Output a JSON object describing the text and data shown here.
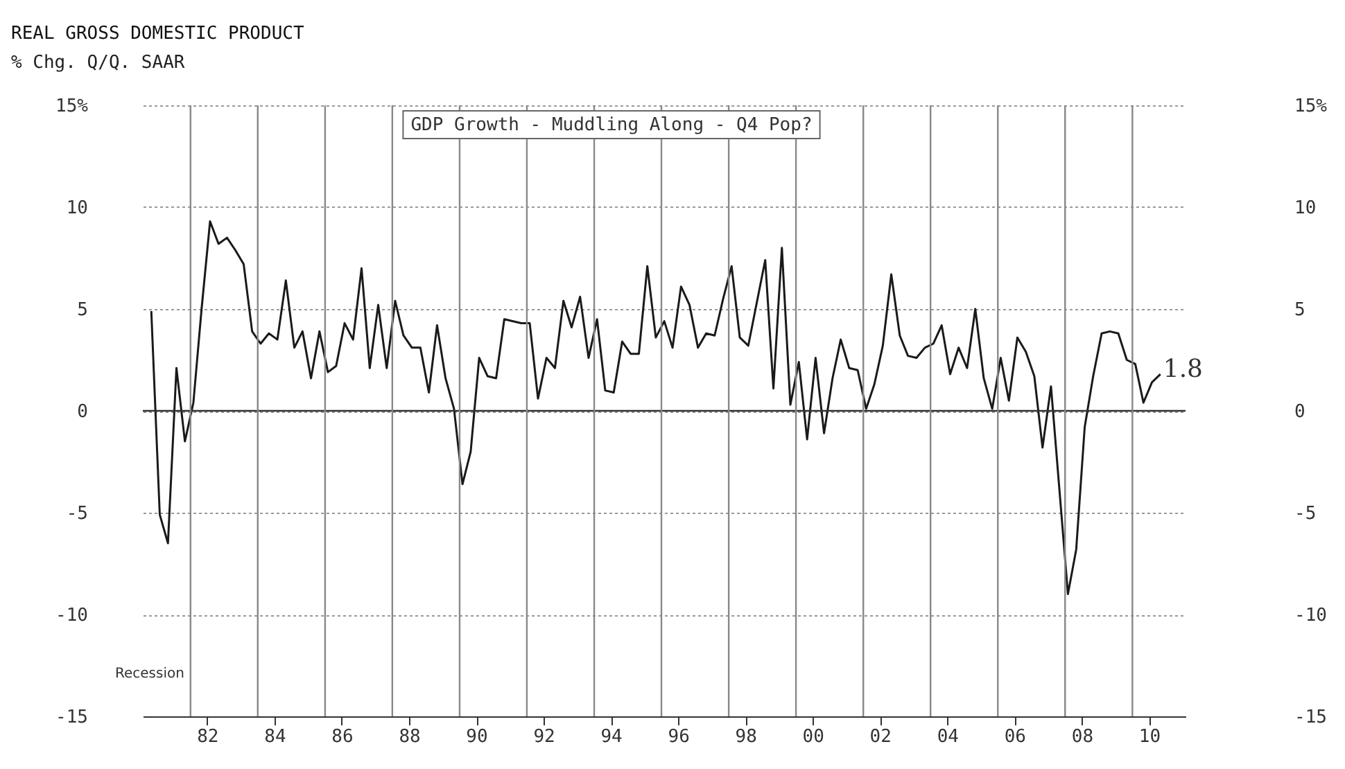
{
  "chart_data": {
    "type": "line",
    "title": "REAL GROSS DOMESTIC PRODUCT",
    "subtitle": "% Chg. Q/Q. SAAR",
    "x": [
      "1980-11",
      "1981-02",
      "1981-05",
      "1981-08",
      "1981-11",
      "1982-02",
      "1982-05",
      "1982-08",
      "1982-11",
      "1983-02",
      "1983-05",
      "1983-08",
      "1983-11",
      "1984-02",
      "1984-05",
      "1984-08",
      "1984-11",
      "1985-02",
      "1985-05",
      "1985-08",
      "1985-11",
      "1986-02",
      "1986-05",
      "1986-08",
      "1986-11",
      "1987-02",
      "1987-05",
      "1987-08",
      "1987-11",
      "1988-02",
      "1988-05",
      "1988-08",
      "1988-11",
      "1989-02",
      "1989-05",
      "1989-08",
      "1989-11",
      "1990-02",
      "1990-05",
      "1990-08",
      "1990-11",
      "1991-02",
      "1991-05",
      "1991-11",
      "1992-02",
      "1992-05",
      "1992-08",
      "1992-11",
      "1993-02",
      "1993-05",
      "1993-08",
      "1993-11",
      "1994-02",
      "1994-05",
      "1994-08",
      "1994-11",
      "1995-02",
      "1995-05",
      "1995-08",
      "1995-11",
      "1996-02",
      "1996-05",
      "1996-08",
      "1996-11",
      "1997-02",
      "1997-05",
      "1997-08",
      "1997-11",
      "1998-02",
      "1998-05",
      "1998-08",
      "1998-11",
      "1999-02",
      "1999-05",
      "1999-08",
      "1999-11",
      "2000-02",
      "2000-05",
      "2000-08",
      "2000-11",
      "2001-02",
      "2001-05",
      "2001-08",
      "2001-11",
      "2002-02",
      "2002-05",
      "2002-08",
      "2002-11",
      "2003-02",
      "2003-05",
      "2003-08",
      "2003-11",
      "2004-02",
      "2004-05",
      "2004-08",
      "2004-11",
      "2005-02",
      "2005-05",
      "2005-08",
      "2005-11",
      "2006-02",
      "2006-05",
      "2006-08",
      "2006-11",
      "2007-02",
      "2007-05",
      "2007-08",
      "2007-11",
      "2008-02",
      "2008-05",
      "2008-08",
      "2008-11",
      "2009-02",
      "2009-05",
      "2009-08",
      "2009-11",
      "2010-02",
      "2010-05",
      "2010-08",
      "2010-11"
    ],
    "series": [
      {
        "color": "#1a1a1a",
        "values": [
          4.9,
          -5.1,
          -6.5,
          2.1,
          -1.5,
          0.4,
          5.0,
          9.3,
          8.2,
          8.5,
          7.9,
          7.2,
          3.9,
          3.3,
          3.8,
          3.5,
          6.4,
          3.1,
          3.9,
          1.6,
          3.9,
          1.9,
          2.2,
          4.3,
          3.5,
          7.0,
          2.1,
          5.2,
          2.1,
          5.4,
          3.7,
          3.1,
          3.1,
          0.9,
          4.2,
          1.6,
          0.1,
          -3.6,
          -2.0,
          2.6,
          1.7,
          1.6,
          4.5,
          4.3,
          4.3,
          0.6,
          2.6,
          2.1,
          5.4,
          4.1,
          5.6,
          2.6,
          4.5,
          1.0,
          0.9,
          3.4,
          2.8,
          2.8,
          7.1,
          3.6,
          4.4,
          3.1,
          6.1,
          5.2,
          3.1,
          3.8,
          3.7,
          5.5,
          7.1,
          3.6,
          3.2,
          5.3,
          7.4,
          1.1,
          8.0,
          0.3,
          2.4,
          -1.4,
          2.6,
          -1.1,
          1.6,
          3.5,
          2.1,
          2.0,
          0.1,
          1.3,
          3.2,
          6.7,
          3.7,
          2.7,
          2.6,
          3.1,
          3.3,
          4.2,
          1.8,
          3.1,
          2.1,
          5.0,
          1.6,
          0.1,
          2.6,
          0.5,
          3.6,
          2.9,
          1.7,
          -1.8,
          1.2,
          -3.9,
          -9.0,
          -6.8,
          -0.8,
          1.7,
          3.8,
          3.9,
          3.8,
          2.5,
          2.3,
          0.4,
          1.4,
          1.8
        ]
      }
    ],
    "xlim": [
      "1980-08",
      "2011-08"
    ],
    "xticks": [
      {
        "value": "1982-07",
        "label": "82"
      },
      {
        "value": "1984-07",
        "label": "84"
      },
      {
        "value": "1986-07",
        "label": "86"
      },
      {
        "value": "1988-07",
        "label": "88"
      },
      {
        "value": "1990-07",
        "label": "90"
      },
      {
        "value": "1992-07",
        "label": "92"
      },
      {
        "value": "1994-07",
        "label": "94"
      },
      {
        "value": "1996-07",
        "label": "96"
      },
      {
        "value": "1998-07",
        "label": "98"
      },
      {
        "value": "2000-07",
        "label": "00"
      },
      {
        "value": "2002-07",
        "label": "02"
      },
      {
        "value": "2004-07",
        "label": "04"
      },
      {
        "value": "2006-07",
        "label": "06"
      },
      {
        "value": "2008-07",
        "label": "08"
      },
      {
        "value": "2010-07",
        "label": "10"
      }
    ],
    "ylim": [
      -15,
      15
    ],
    "yticks": [
      -15,
      -10,
      -5,
      0,
      5,
      10,
      {
        "value": 15,
        "label": "15%"
      }
    ],
    "y2lim": [
      -15,
      15
    ],
    "y2ticks": [
      -15,
      -10,
      -5,
      0,
      5,
      10,
      {
        "value": 15,
        "label": "15%"
      }
    ],
    "ref_lines": [
      {
        "axis": "y",
        "value": 0,
        "color": "#333333"
      },
      {
        "axis": "x",
        "value": "1982",
        "color": "#888888"
      },
      {
        "axis": "x",
        "value": "1984",
        "color": "#888888"
      },
      {
        "axis": "x",
        "value": "1986",
        "color": "#888888"
      },
      {
        "axis": "x",
        "value": "1988",
        "color": "#888888"
      },
      {
        "axis": "x",
        "value": "1990",
        "color": "#888888"
      },
      {
        "axis": "x",
        "value": "1992",
        "color": "#888888"
      },
      {
        "axis": "x",
        "value": "1994",
        "color": "#888888"
      },
      {
        "axis": "x",
        "value": "1996",
        "color": "#888888"
      },
      {
        "axis": "x",
        "value": "1998",
        "color": "#888888"
      },
      {
        "axis": "x",
        "value": "2000",
        "color": "#888888"
      },
      {
        "axis": "x",
        "value": "2002",
        "color": "#888888"
      },
      {
        "axis": "x",
        "value": "2004",
        "color": "#888888"
      },
      {
        "axis": "x",
        "value": "2006",
        "color": "#888888"
      },
      {
        "axis": "x",
        "value": "2008",
        "color": "#888888"
      },
      {
        "axis": "x",
        "value": "2010",
        "color": "#888888"
      }
    ],
    "annotations": [
      "GDP Growth - Muddling Along - Q4 Pop?",
      {
        "text": "1.8",
        "x": "2010-11",
        "y": 1.8
      },
      "Recession"
    ],
    "grid": "y",
    "marker": "none",
    "line_style": "solid"
  }
}
